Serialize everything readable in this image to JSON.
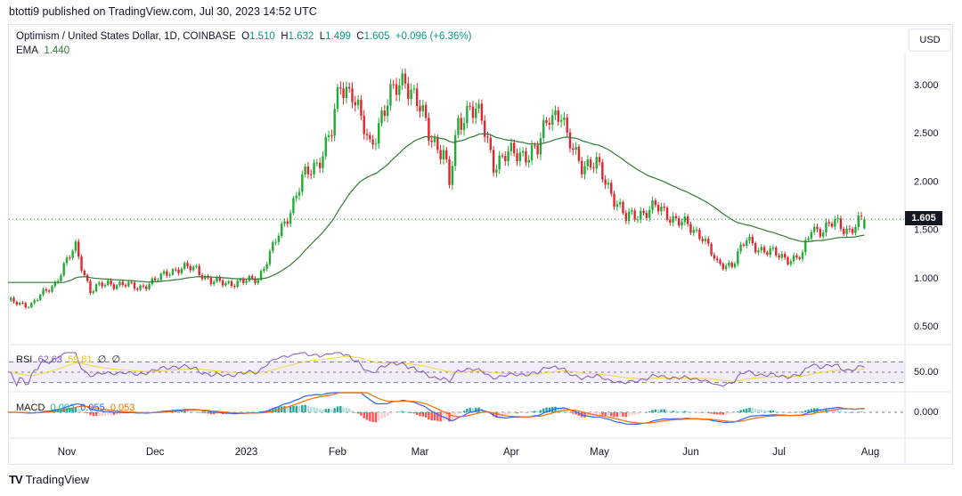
{
  "header": {
    "published": "btotti9 published on TradingView.com, Jul 30, 2023 14:52 UTC"
  },
  "legend": {
    "symbol": "Optimism / United States Dollar, 1D, COINBASE",
    "o_label": "O",
    "open": "1.510",
    "h_label": "H",
    "high": "1.632",
    "l_label": "L",
    "low": "1.499",
    "c_label": "C",
    "close": "1.605",
    "change": "+0.096 (+6.36%)",
    "ema_label": "EMA",
    "ema_value": "1.440"
  },
  "currency_button": "USD",
  "last_price": "1.605",
  "rsi": {
    "label": "RSI",
    "value": "62.63",
    "ma": "59.81",
    "x1": "∅",
    "x2": "∅",
    "axis_label": "50.00"
  },
  "macd": {
    "label": "MACD",
    "hist": "0.002",
    "macd": "0.055",
    "signal": "0.053",
    "axis_label": "0.000"
  },
  "footer": {
    "brand": "TradingView"
  },
  "colors": {
    "up": "#22ab35",
    "down": "#e0262f",
    "ema": "#2e7d32",
    "rsi": "#7e57c2",
    "rsi_ma": "#f5d53a",
    "macd": "#2962ff",
    "signal": "#ff6d00"
  },
  "chart_data": {
    "type": "candlestick",
    "title": "Optimism / United States Dollar, 1D, COINBASE",
    "y_ticks": [
      "3.000",
      "2.500",
      "2.000",
      "1.500",
      "1.000",
      "0.500"
    ],
    "y_tick_values": [
      3,
      2.5,
      2,
      1.5,
      1,
      0.5
    ],
    "x_ticks": [
      {
        "label": "Nov",
        "date": "2022-11-01"
      },
      {
        "label": "Dec",
        "date": "2022-12-01"
      },
      {
        "label": "2023",
        "date": "2023-01-01"
      },
      {
        "label": "Feb",
        "date": "2023-02-01"
      },
      {
        "label": "Mar",
        "date": "2023-03-01"
      },
      {
        "label": "Apr",
        "date": "2023-04-01"
      },
      {
        "label": "May",
        "date": "2023-05-01"
      },
      {
        "label": "Jun",
        "date": "2023-06-01"
      },
      {
        "label": "Jul",
        "date": "2023-07-01"
      },
      {
        "label": "Aug",
        "date": "2023-08-01"
      }
    ],
    "ylim": [
      0.2,
      3.3
    ],
    "approx_closes": [
      [
        "2022-10-12",
        0.75
      ],
      [
        "2022-10-20",
        0.72
      ],
      [
        "2022-10-28",
        0.95
      ],
      [
        "2022-11-04",
        1.32
      ],
      [
        "2022-11-09",
        0.86
      ],
      [
        "2022-11-15",
        0.95
      ],
      [
        "2022-11-25",
        0.9
      ],
      [
        "2022-12-01",
        0.96
      ],
      [
        "2022-12-06",
        1.08
      ],
      [
        "2022-12-15",
        1.1
      ],
      [
        "2022-12-20",
        0.95
      ],
      [
        "2022-12-31",
        0.95
      ],
      [
        "2023-01-05",
        1.0
      ],
      [
        "2023-01-10",
        1.3
      ],
      [
        "2023-01-15",
        1.65
      ],
      [
        "2023-01-20",
        2.0
      ],
      [
        "2023-01-25",
        2.2
      ],
      [
        "2023-01-30",
        2.5
      ],
      [
        "2023-02-02",
        3.0
      ],
      [
        "2023-02-06",
        2.95
      ],
      [
        "2023-02-09",
        2.6
      ],
      [
        "2023-02-12",
        2.35
      ],
      [
        "2023-02-16",
        2.7
      ],
      [
        "2023-02-20",
        2.9
      ],
      [
        "2023-02-24",
        3.1
      ],
      [
        "2023-02-28",
        2.8
      ],
      [
        "2023-03-04",
        2.5
      ],
      [
        "2023-03-09",
        2.3
      ],
      [
        "2023-03-11",
        1.95
      ],
      [
        "2023-03-14",
        2.6
      ],
      [
        "2023-03-18",
        2.8
      ],
      [
        "2023-03-22",
        2.6
      ],
      [
        "2023-03-26",
        2.2
      ],
      [
        "2023-03-30",
        2.25
      ],
      [
        "2023-04-05",
        2.3
      ],
      [
        "2023-04-10",
        2.3
      ],
      [
        "2023-04-14",
        2.72
      ],
      [
        "2023-04-18",
        2.7
      ],
      [
        "2023-04-20",
        2.4
      ],
      [
        "2023-04-25",
        2.2
      ],
      [
        "2023-04-30",
        2.15
      ],
      [
        "2023-05-05",
        1.9
      ],
      [
        "2023-05-10",
        1.6
      ],
      [
        "2023-05-15",
        1.68
      ],
      [
        "2023-05-20",
        1.72
      ],
      [
        "2023-05-25",
        1.65
      ],
      [
        "2023-06-01",
        1.5
      ],
      [
        "2023-06-05",
        1.45
      ],
      [
        "2023-06-10",
        1.12
      ],
      [
        "2023-06-15",
        1.15
      ],
      [
        "2023-06-20",
        1.38
      ],
      [
        "2023-06-25",
        1.3
      ],
      [
        "2023-07-01",
        1.22
      ],
      [
        "2023-07-06",
        1.2
      ],
      [
        "2023-07-09",
        1.22
      ],
      [
        "2023-07-12",
        1.52
      ],
      [
        "2023-07-16",
        1.5
      ],
      [
        "2023-07-20",
        1.56
      ],
      [
        "2023-07-25",
        1.5
      ],
      [
        "2023-07-30",
        1.605
      ]
    ],
    "ema_end": 1.44,
    "rsi_end": 62.63,
    "macd_end": 0.055
  }
}
